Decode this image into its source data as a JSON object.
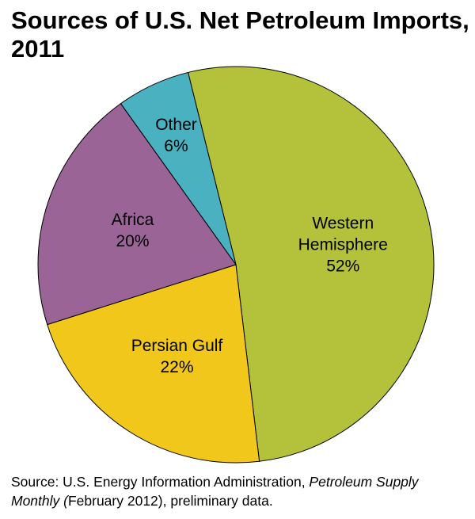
{
  "chart_data": {
    "type": "pie",
    "title": "Sources of U.S. Net Petroleum Imports, 2011",
    "categories": [
      "Western Hemisphere",
      "Persian Gulf",
      "Africa",
      "Other"
    ],
    "values": [
      52,
      22,
      20,
      6
    ],
    "value_labels": [
      "52%",
      "22%",
      "20%",
      "6%"
    ],
    "colors": [
      "#b3c23a",
      "#f1c71c",
      "#9a6497",
      "#4ab1c0"
    ],
    "source": {
      "prefix": "Source: U.S. Energy Information Administration, ",
      "italic": "Petroleum Supply Monthly (",
      "suffix": "February 2012), preliminary data."
    }
  }
}
